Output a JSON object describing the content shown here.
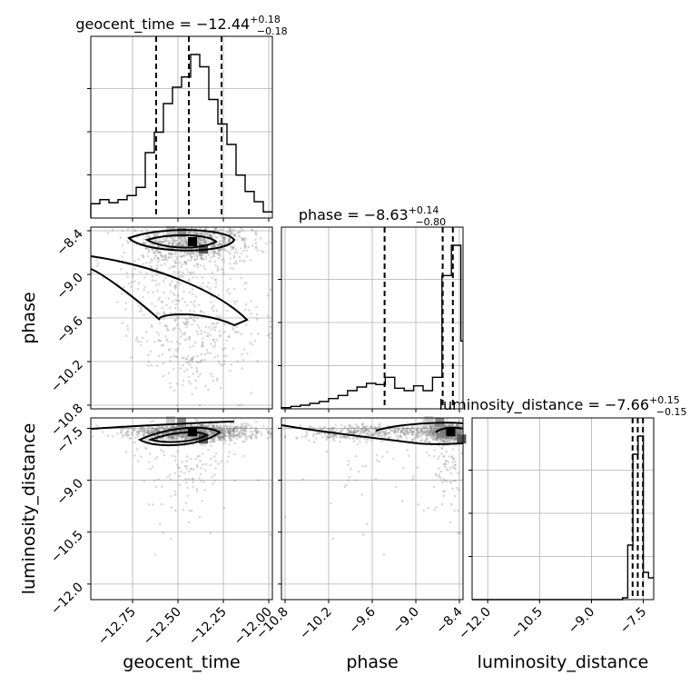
{
  "chart_data": {
    "type": "corner",
    "parameters": [
      "geocent_time",
      "phase",
      "luminosity_distance"
    ],
    "axis_labels": {
      "geocent_time": "geocent_time",
      "phase": "phase",
      "luminosity_distance": "luminosity_distance"
    },
    "ranges": {
      "geocent_time": [
        -12.98,
        -11.98
      ],
      "phase": [
        -10.85,
        -8.35
      ],
      "luminosity_distance": [
        -12.45,
        -7.2
      ]
    },
    "ticks": {
      "geocent_time": [
        {
          "value": -12.75,
          "label": "−12.75"
        },
        {
          "value": -12.5,
          "label": "−12.50"
        },
        {
          "value": -12.25,
          "label": "−12.25"
        },
        {
          "value": -12.0,
          "label": "−12.00"
        }
      ],
      "phase": [
        {
          "value": -10.8,
          "label": "−10.8"
        },
        {
          "value": -10.2,
          "label": "−10.2"
        },
        {
          "value": -9.6,
          "label": "−9.6"
        },
        {
          "value": -9.0,
          "label": "−9.0"
        },
        {
          "value": -8.4,
          "label": "−8.4"
        }
      ],
      "luminosity_distance": [
        {
          "value": -12.0,
          "label": "−12.0"
        },
        {
          "value": -10.5,
          "label": "−10.5"
        },
        {
          "value": -9.0,
          "label": "−9.0"
        },
        {
          "value": -7.5,
          "label": "−7.5"
        }
      ]
    },
    "grid": true,
    "diagonal": [
      {
        "parameter": "geocent_time",
        "title_prefix": "geocent_time = −12.44",
        "title_sup": "+0.18",
        "title_sub": "−0.18",
        "median": -12.44,
        "quantiles": [
          -12.62,
          -12.44,
          -12.26
        ],
        "bins": [
          -12.98,
          -12.93,
          -12.88,
          -12.83,
          -12.78,
          -12.73,
          -12.68,
          -12.63,
          -12.58,
          -12.53,
          -12.48,
          -12.43,
          -12.38,
          -12.33,
          -12.28,
          -12.23,
          -12.18,
          -12.13,
          -12.08,
          -12.03,
          -11.98
        ],
        "counts": [
          14,
          18,
          15,
          18,
          22,
          30,
          64,
          84,
          112,
          128,
          138,
          160,
          148,
          116,
          92,
          72,
          42,
          26,
          16,
          6
        ]
      },
      {
        "parameter": "phase",
        "title_prefix": "phase = −8.63",
        "title_sup": "+0.14",
        "title_sub": "−0.80",
        "median": -8.63,
        "quantiles": [
          -9.43,
          -8.63,
          -8.49
        ],
        "bins": [
          -10.85,
          -10.72,
          -10.59,
          -10.46,
          -10.33,
          -10.2,
          -10.07,
          -9.94,
          -9.81,
          -9.68,
          -9.55,
          -9.42,
          -9.29,
          -9.16,
          -9.03,
          -8.9,
          -8.77,
          -8.64,
          -8.51,
          -8.38,
          -8.35
        ],
        "counts": [
          2,
          4,
          6,
          9,
          12,
          17,
          22,
          30,
          36,
          42,
          40,
          52,
          34,
          30,
          38,
          30,
          52,
          220,
          270,
          112
        ]
      },
      {
        "parameter": "luminosity_distance",
        "title_prefix": "luminosity_distance = −7.66",
        "title_sup": "+0.15",
        "title_sub": "−0.15",
        "median": -7.66,
        "quantiles": [
          -7.81,
          -7.66,
          -7.51
        ],
        "bins": [
          -12.45,
          -8.1,
          -7.95,
          -7.8,
          -7.65,
          -7.5,
          -7.35,
          -7.2
        ],
        "counts": [
          0,
          2,
          60,
          160,
          180,
          30,
          24
        ]
      }
    ]
  }
}
